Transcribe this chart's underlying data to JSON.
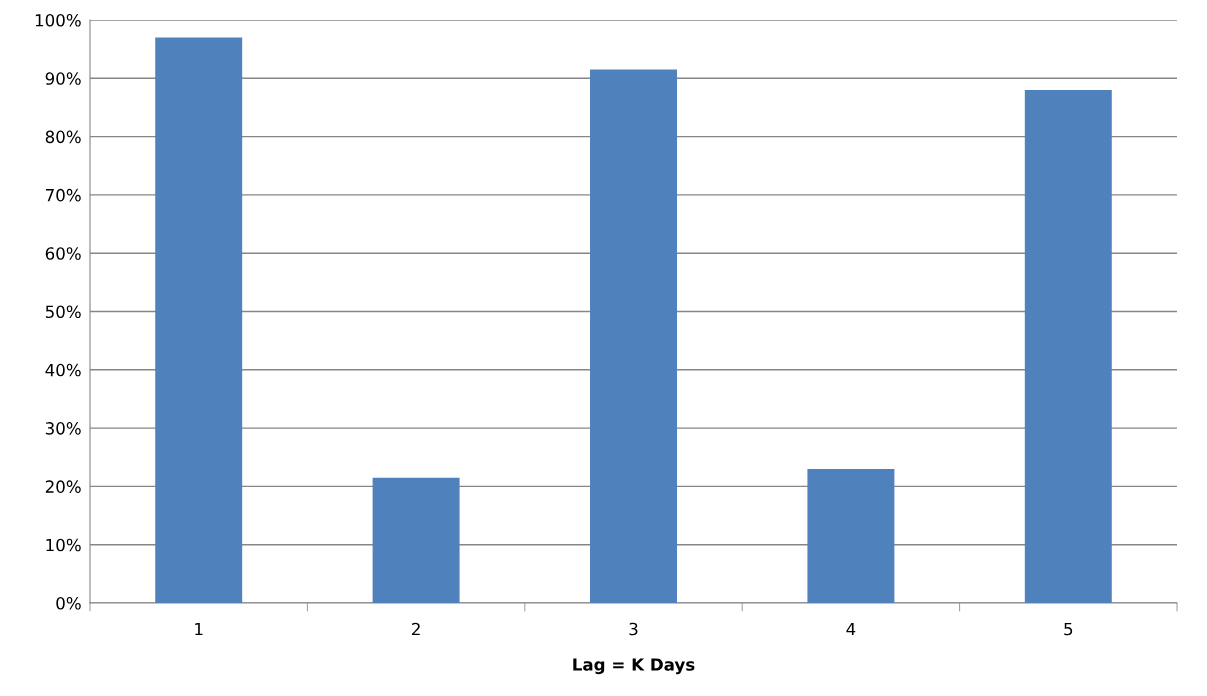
{
  "chart_data": {
    "type": "bar",
    "xlabel": "Lag = K Days",
    "categories": [
      "1",
      "2",
      "3",
      "4",
      "5"
    ],
    "values": [
      97,
      21.5,
      91.5,
      23,
      88
    ],
    "color": "#4f81bd",
    "ylim": [
      0,
      100
    ],
    "yticks": [
      {
        "value": 0,
        "label": "0%"
      },
      {
        "value": 10,
        "label": "10%"
      },
      {
        "value": 20,
        "label": "20%"
      },
      {
        "value": 30,
        "label": "30%"
      },
      {
        "value": 40,
        "label": "40%"
      },
      {
        "value": 50,
        "label": "50%"
      },
      {
        "value": 60,
        "label": "60%"
      },
      {
        "value": 70,
        "label": "70%"
      },
      {
        "value": 80,
        "label": "80%"
      },
      {
        "value": 90,
        "label": "90%"
      },
      {
        "value": 100,
        "label": "100%"
      }
    ],
    "grid": "y"
  }
}
